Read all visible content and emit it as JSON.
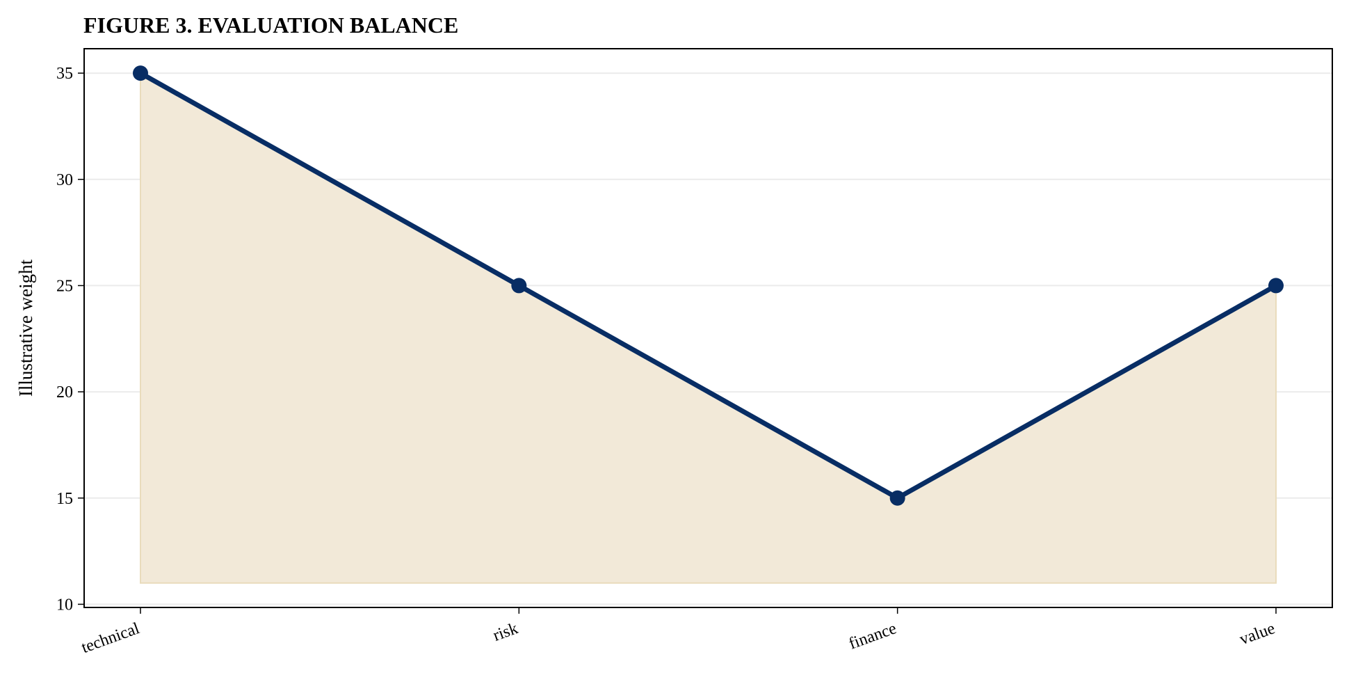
{
  "chart_data": {
    "type": "area",
    "title": "FIGURE 3. EVALUATION BALANCE",
    "xlabel": "",
    "ylabel": "Illustrative weight",
    "categories": [
      "technical",
      "risk",
      "finance",
      "value"
    ],
    "values": [
      35,
      25,
      15,
      25
    ],
    "fill_baseline": 11,
    "ylim": [
      9.85,
      36.15
    ],
    "yticks": [
      "10",
      "15",
      "20",
      "25",
      "30",
      "35"
    ],
    "grid": "horizontal",
    "legend": "none",
    "colors": {
      "line": "#082d64",
      "fill": "#f2e9d8",
      "fill_edge": "#e9dcbc",
      "grid": "#ebebeb",
      "axis": "#000000"
    }
  }
}
